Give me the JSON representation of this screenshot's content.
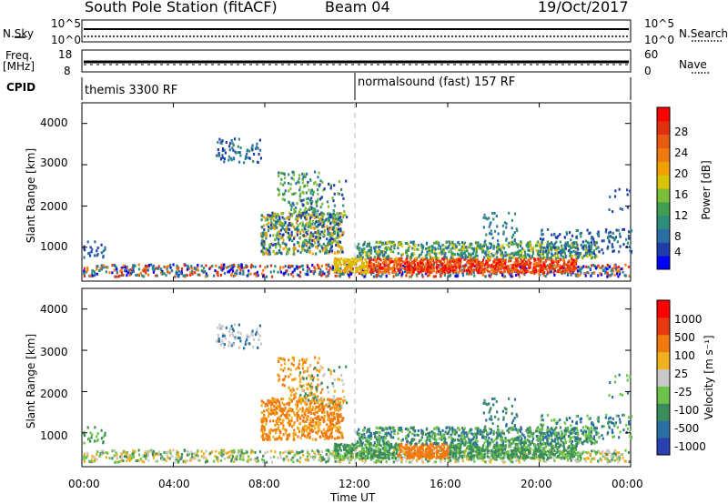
{
  "header": {
    "station": "South Pole Station (fitACF)",
    "beam": "Beam 04",
    "date": "19/Oct/2017"
  },
  "strip": {
    "nsky_label": "N.Sky",
    "nsearch_label": "N.Search",
    "nsky_ticks": [
      "10^5",
      "10^0"
    ],
    "nsearch_ticks": [
      "10^5",
      "10^0"
    ],
    "freq_label": "Freq.",
    "freq_unit": "[MHz]",
    "freq_ticks": [
      "18",
      "8"
    ],
    "nave_label": "Nave",
    "nave_ticks": [
      "60",
      "0"
    ],
    "cpid_label": "CPID",
    "cpid_mode_1": "themis 3300 RF",
    "cpid_mode_2": "normalsound (fast) 157 RF"
  },
  "chart_data": [
    {
      "type": "heatmap",
      "title": "",
      "ylabel": "Slant Range [km]",
      "xlabel": "",
      "yticks": [
        "4000",
        "3000",
        "2000",
        "1000"
      ],
      "ylim": [
        180,
        4500
      ],
      "xlim": [
        0,
        24
      ],
      "colorbar": {
        "label": "Power [dB]",
        "ticks": [
          "28",
          "24",
          "20",
          "16",
          "12",
          "8",
          "4"
        ],
        "colors": [
          "#0000ff",
          "#1f3ca8",
          "#2a6fa3",
          "#2e8c7a",
          "#3f9e4f",
          "#7cbd3a",
          "#d9c400",
          "#f0a000",
          "#f07a10",
          "#e85a10",
          "#e03010",
          "#ff0000"
        ]
      }
    },
    {
      "type": "heatmap",
      "title": "",
      "ylabel": "Slant Range [km]",
      "xlabel": "Time UT",
      "yticks": [
        "4000",
        "3000",
        "2000",
        "1000"
      ],
      "ylim": [
        180,
        4500
      ],
      "xlim": [
        0,
        24
      ],
      "colorbar": {
        "label": "Velocity [m s⁻¹]",
        "ticks": [
          "1000",
          "500",
          "100",
          "25",
          "-25",
          "-100",
          "-500",
          "-1000"
        ],
        "colors": [
          "#2a3fb0",
          "#2a6fa3",
          "#3a8c5a",
          "#6cc24a",
          "#c8c8c8",
          "#f0b020",
          "#f07a10",
          "#e83a10",
          "#ff0000"
        ]
      },
      "xticks": [
        "00:00",
        "04:00",
        "08:00",
        "12:00",
        "16:00",
        "20:00",
        "00:00"
      ]
    }
  ]
}
